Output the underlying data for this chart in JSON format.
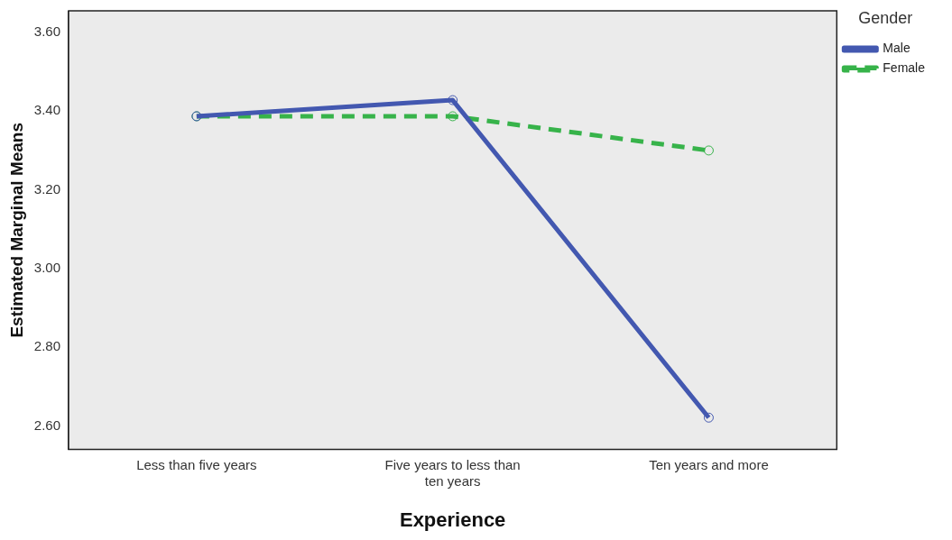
{
  "chart_data": {
    "type": "line",
    "xlabel": "Experience",
    "ylabel": "Estimated Marginal Means",
    "legend_title": "Gender",
    "categories": [
      "Less than five years",
      "Five years to less than ten years",
      "Ten years and more"
    ],
    "series": [
      {
        "name": "Male",
        "color": "#4358b0",
        "values": [
          3.387,
          3.428,
          2.621
        ],
        "line_style": "solid"
      },
      {
        "name": "Female",
        "color": "#37b34a",
        "values": [
          3.387,
          3.387,
          3.3
        ],
        "line_style": "dashed"
      }
    ],
    "ylim": [
      2.54,
      3.655
    ],
    "yticks": [
      {
        "value": 2.6,
        "label": "2.60"
      },
      {
        "value": 2.8,
        "label": "2.80"
      },
      {
        "value": 3.0,
        "label": "3.00"
      },
      {
        "value": 3.2,
        "label": "3.20"
      },
      {
        "value": 3.4,
        "label": "3.40"
      },
      {
        "value": 3.6,
        "label": "3.60"
      }
    ],
    "grid": false,
    "legend": "top right",
    "marker": "circle"
  }
}
